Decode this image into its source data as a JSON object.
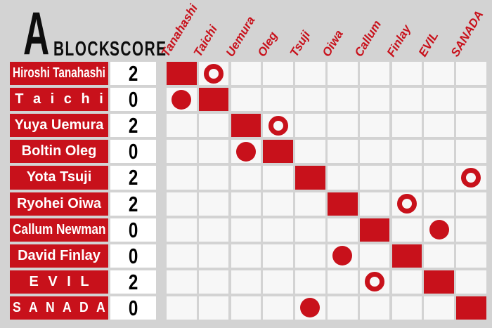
{
  "header": {
    "block_letter": "A",
    "block_label": "BLOCK",
    "score_label": "SCORE"
  },
  "colors": {
    "red": "#c8111b",
    "background": "#d3d3d3",
    "cell": "#f7f7f7",
    "score_cell": "#ffffff",
    "text_black": "#0d0d0d",
    "name_text": "#ffffff"
  },
  "chart_data": {
    "type": "table",
    "title": "A BLOCK",
    "score_header": "SCORE",
    "columns": [
      "Tanahashi",
      "Taichi",
      "Uemura",
      "Oleg",
      "Tsuji",
      "Oiwa",
      "Callum",
      "Finlay",
      "EVIL",
      "SANADA"
    ],
    "mark_styles": [
      "square = own diagonal cell",
      "circle-open = open red ring",
      "circle-filled = solid red disc"
    ],
    "rows": [
      {
        "name": "Hiroshi Tanahashi",
        "score": "2",
        "marks": [
          {
            "column": "Tanahashi",
            "mark": "square"
          },
          {
            "column": "Taichi",
            "mark": "circle-open"
          }
        ]
      },
      {
        "name": "T a i c h i",
        "score": "0",
        "marks": [
          {
            "column": "Tanahashi",
            "mark": "circle-filled"
          },
          {
            "column": "Taichi",
            "mark": "square"
          }
        ]
      },
      {
        "name": "Yuya Uemura",
        "score": "2",
        "marks": [
          {
            "column": "Uemura",
            "mark": "square"
          },
          {
            "column": "Oleg",
            "mark": "circle-open"
          }
        ]
      },
      {
        "name": "Boltin Oleg",
        "score": "0",
        "marks": [
          {
            "column": "Uemura",
            "mark": "circle-filled"
          },
          {
            "column": "Oleg",
            "mark": "square"
          }
        ]
      },
      {
        "name": "Yota Tsuji",
        "score": "2",
        "marks": [
          {
            "column": "Tsuji",
            "mark": "square"
          },
          {
            "column": "SANADA",
            "mark": "circle-open"
          }
        ]
      },
      {
        "name": "Ryohei Oiwa",
        "score": "2",
        "marks": [
          {
            "column": "Oiwa",
            "mark": "square"
          },
          {
            "column": "Finlay",
            "mark": "circle-open"
          }
        ]
      },
      {
        "name": "Callum Newman",
        "score": "0",
        "marks": [
          {
            "column": "Callum",
            "mark": "square"
          },
          {
            "column": "EVIL",
            "mark": "circle-filled"
          }
        ]
      },
      {
        "name": "David Finlay",
        "score": "0",
        "marks": [
          {
            "column": "Oiwa",
            "mark": "circle-filled"
          },
          {
            "column": "Finlay",
            "mark": "square"
          }
        ]
      },
      {
        "name": "E V I L",
        "score": "2",
        "marks": [
          {
            "column": "Callum",
            "mark": "circle-open"
          },
          {
            "column": "EVIL",
            "mark": "square"
          }
        ]
      },
      {
        "name": "S A N A D A",
        "score": "0",
        "marks": [
          {
            "column": "Tsuji",
            "mark": "circle-filled"
          },
          {
            "column": "SANADA",
            "mark": "square"
          }
        ]
      }
    ]
  }
}
